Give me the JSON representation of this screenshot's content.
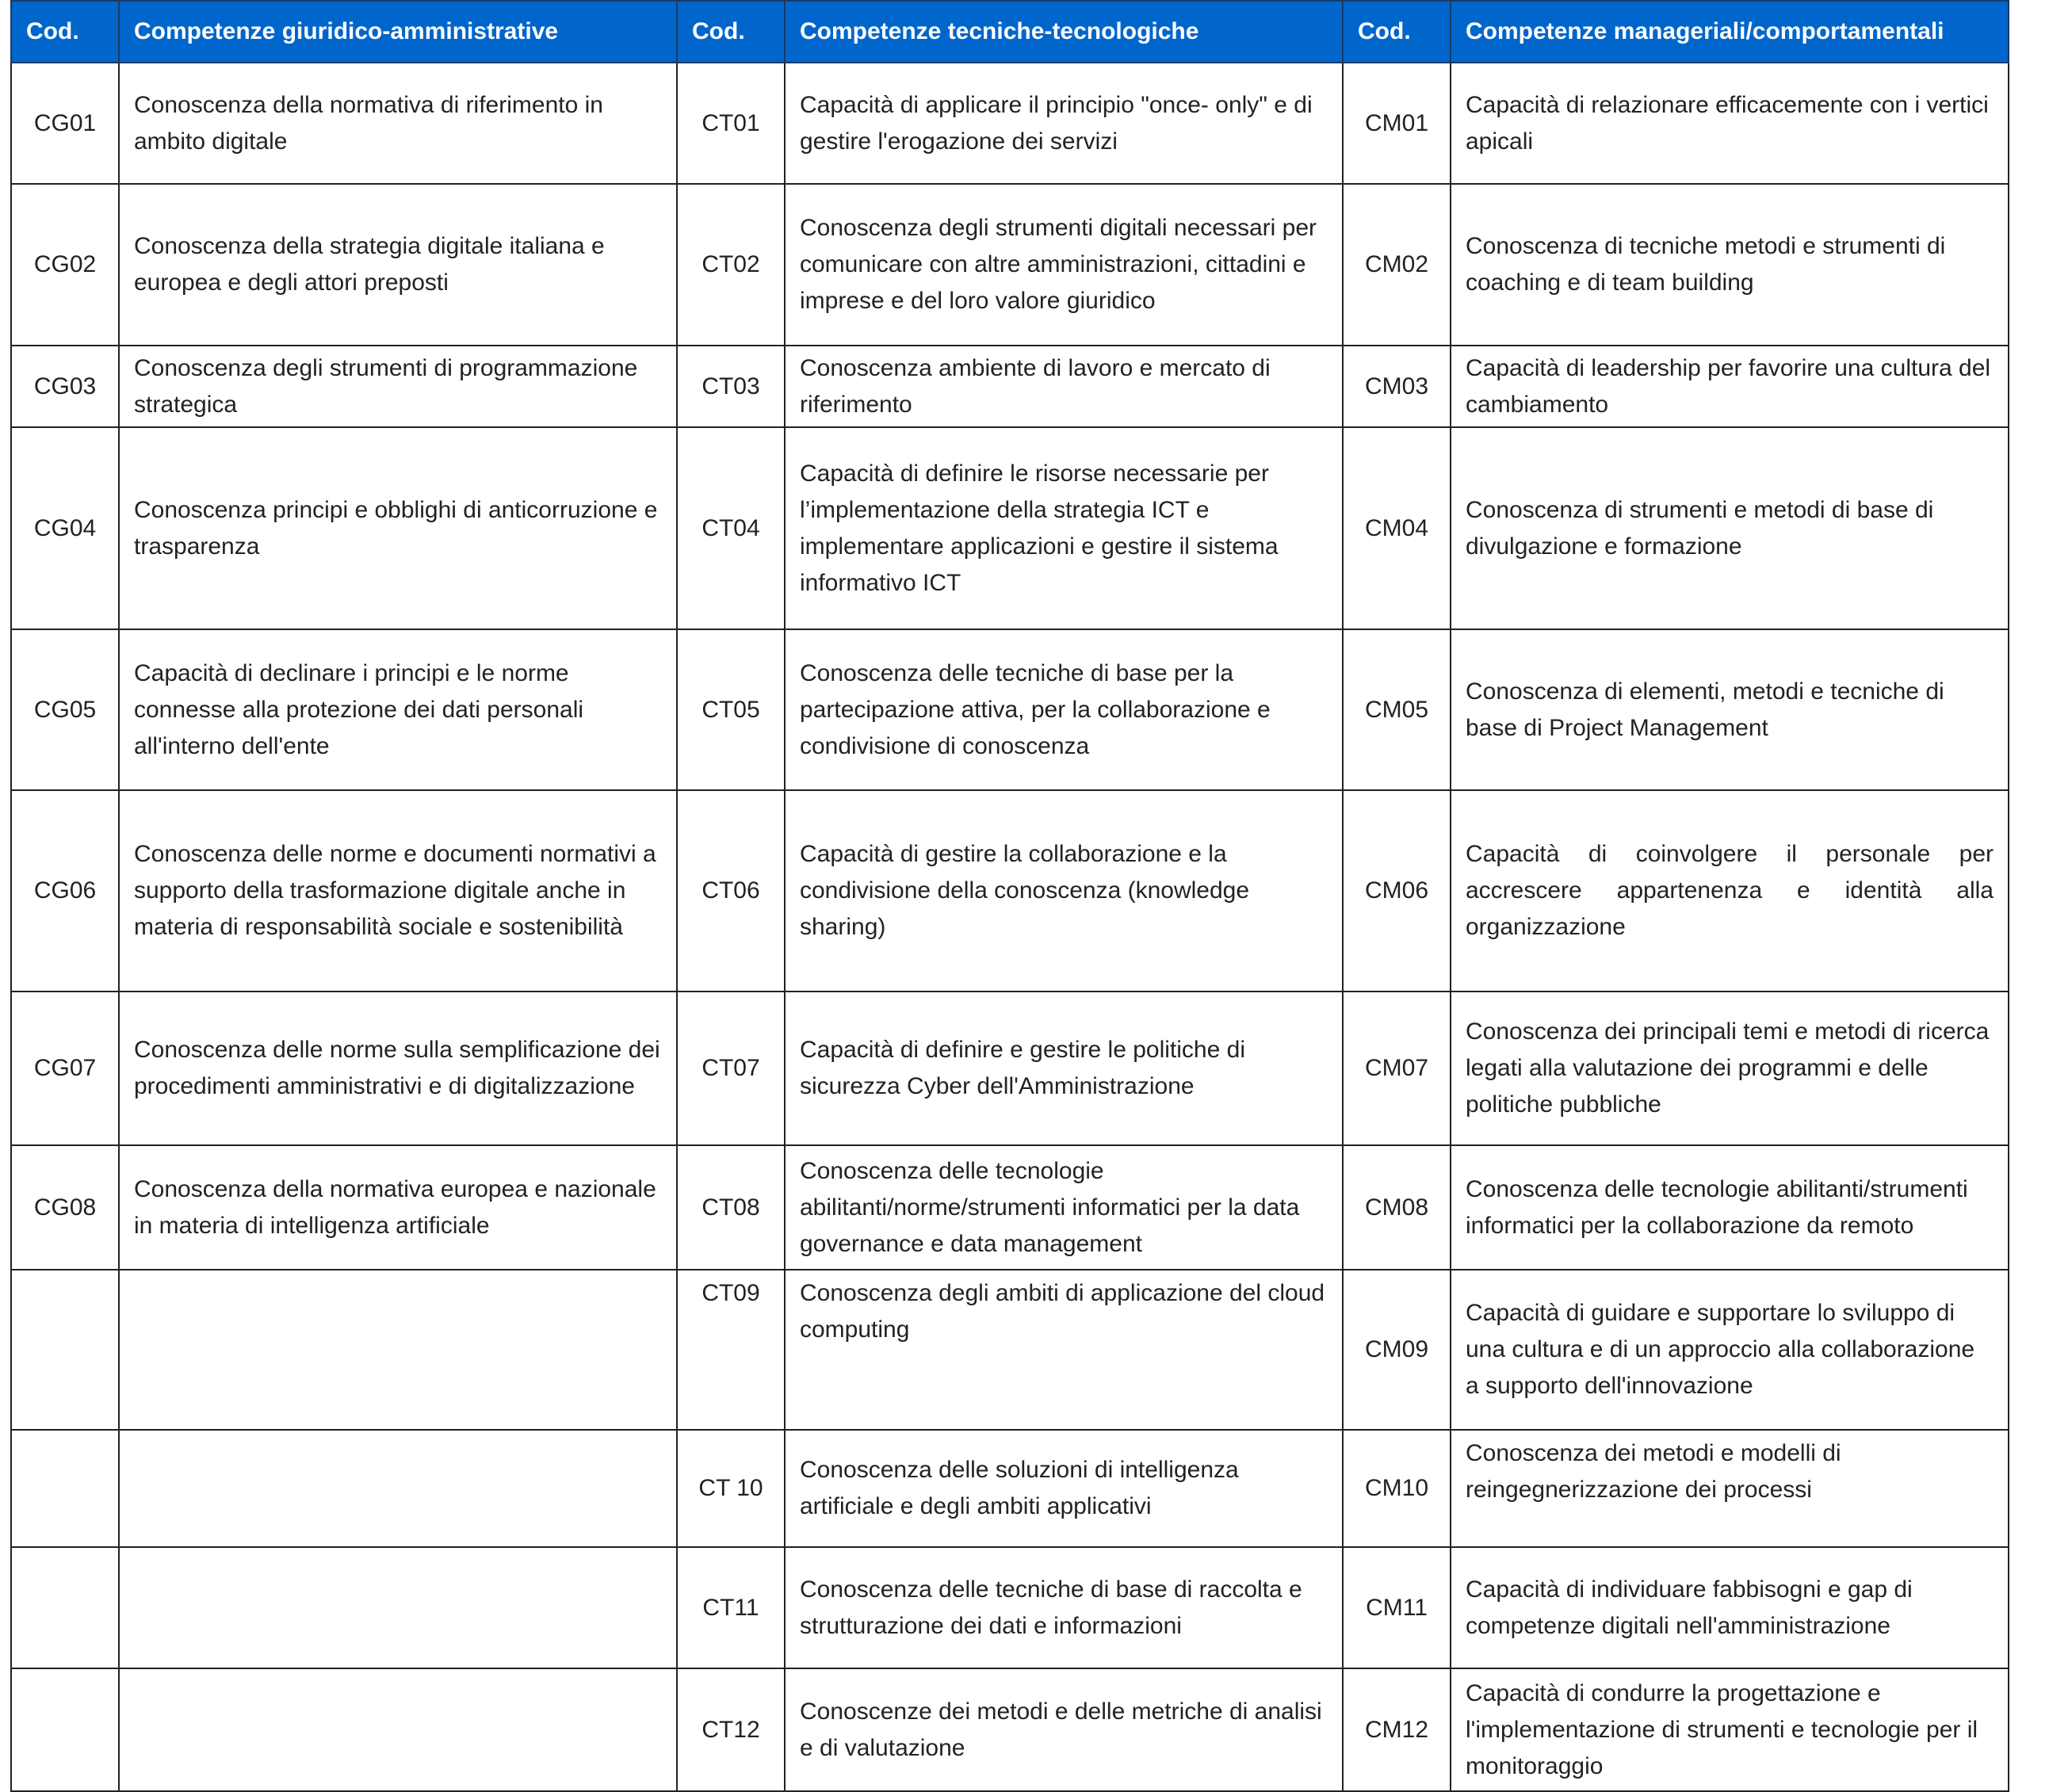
{
  "header": [
    "Cod.",
    "Competenze giuridico-amministrative",
    "Cod.",
    "Competenze tecniche-tecnologiche",
    "Cod.",
    "Competenze manageriali/comportamentali"
  ],
  "header_color": "#0066CC",
  "rows": [
    {
      "cg": "CG01",
      "cg_text": "Conoscenza della normativa di riferimento in ambito digitale",
      "ct": "CT01",
      "ct_text": "Capacità di applicare il principio \"once- only\" e di gestire l'erogazione dei servizi",
      "cm": "CM01",
      "cm_text": "Capacità di relazionare efficacemente con i vertici apicali"
    },
    {
      "cg": "CG02",
      "cg_text": "Conoscenza della strategia digitale italiana e europea e degli attori preposti",
      "ct": "CT02",
      "ct_text": "Conoscenza degli strumenti digitali necessari per comunicare con altre amministrazioni, cittadini e imprese e del loro valore giuridico",
      "cm": "CM02",
      "cm_text": "Conoscenza di tecniche metodi e strumenti di coaching e di team building"
    },
    {
      "cg": "CG03",
      "cg_text": "Conoscenza degli strumenti di programmazione strategica",
      "ct": "CT03",
      "ct_text": "Conoscenza ambiente di lavoro e mercato di riferimento",
      "cm": "CM03",
      "cm_text": "Capacità di leadership per favorire una cultura del cambiamento"
    },
    {
      "cg": "CG04",
      "cg_text": "Conoscenza principi e obblighi di anticorruzione e trasparenza",
      "ct": "CT04",
      "ct_text": "Capacità di definire le risorse necessarie per l’implementazione della strategia ICT e implementare applicazioni e gestire il sistema informativo ICT",
      "cm": "CM04",
      "cm_text": "Conoscenza di strumenti e metodi di base di divulgazione e formazione"
    },
    {
      "cg": "CG05",
      "cg_text": "Capacità di declinare i principi e le norme connesse alla protezione dei dati personali all'interno dell'ente",
      "ct": "CT05",
      "ct_text": "Conoscenza delle tecniche di base per la partecipazione attiva, per la collaborazione e condivisione di conoscenza",
      "cm": "CM05",
      "cm_text": "Conoscenza di elementi, metodi e tecniche di base di Project Management"
    },
    {
      "cg": "CG06",
      "cg_text": "Conoscenza delle norme e documenti normativi a supporto della trasformazione digitale anche in materia di responsabilità sociale e sostenibilità",
      "ct": "CT06",
      "ct_text": "Capacità di gestire la collaborazione e la condivisione della conoscenza (knowledge sharing)",
      "cm": "CM06",
      "cm_text": "Capacità di coinvolgere il personale per accrescere appartenenza e identità alla organizzazione"
    },
    {
      "cg": "CG07",
      "cg_text": "Conoscenza delle norme sulla semplificazione dei procedimenti amministrativi e di digitalizzazione",
      "ct": "CT07",
      "ct_text": "Capacità di definire e gestire le politiche di sicurezza Cyber dell'Amministrazione",
      "cm": "CM07",
      "cm_text": "Conoscenza dei principali temi e metodi di ricerca legati alla valutazione dei programmi e delle politiche pubbliche"
    },
    {
      "cg": "CG08",
      "cg_text": "Conoscenza della normativa europea e nazionale in materia di intelligenza artificiale",
      "ct": "CT08",
      "ct_text": "Conoscenza delle tecnologie abilitanti/norme/strumenti informatici per la data governance e data management",
      "cm": "CM08",
      "cm_text": "Conoscenza delle tecnologie abilitanti/strumenti informatici per la collaborazione da remoto"
    },
    {
      "cg": "",
      "cg_text": "",
      "ct": "CT09",
      "ct_text": "Conoscenza degli ambiti di applicazione del cloud computing",
      "cm": "CM09",
      "cm_text": "Capacità di guidare e supportare lo sviluppo di una cultura e di un approccio alla collaborazione a supporto dell'innovazione"
    },
    {
      "cg": "",
      "cg_text": "",
      "ct": "CT 10",
      "ct_text": "Conoscenza delle soluzioni di intelligenza artificiale e degli ambiti applicativi",
      "cm": "CM10",
      "cm_text": "Conoscenza dei metodi e modelli di reingegnerizzazione dei processi"
    },
    {
      "cg": "",
      "cg_text": "",
      "ct": "CT11",
      "ct_text": "Conoscenza delle tecniche di base di raccolta e strutturazione dei dati e informazioni",
      "cm": "CM11",
      "cm_text": "Capacità di individuare fabbisogni e gap di competenze digitali nell'amministrazione"
    },
    {
      "cg": "",
      "cg_text": "",
      "ct": "CT12",
      "ct_text": "Conoscenze dei metodi e delle metriche di analisi e di valutazione",
      "cm": "CM12",
      "cm_text": "Capacità di condurre la progettazione e l'implementazione di strumenti e tecnologie per il monitoraggio"
    }
  ]
}
